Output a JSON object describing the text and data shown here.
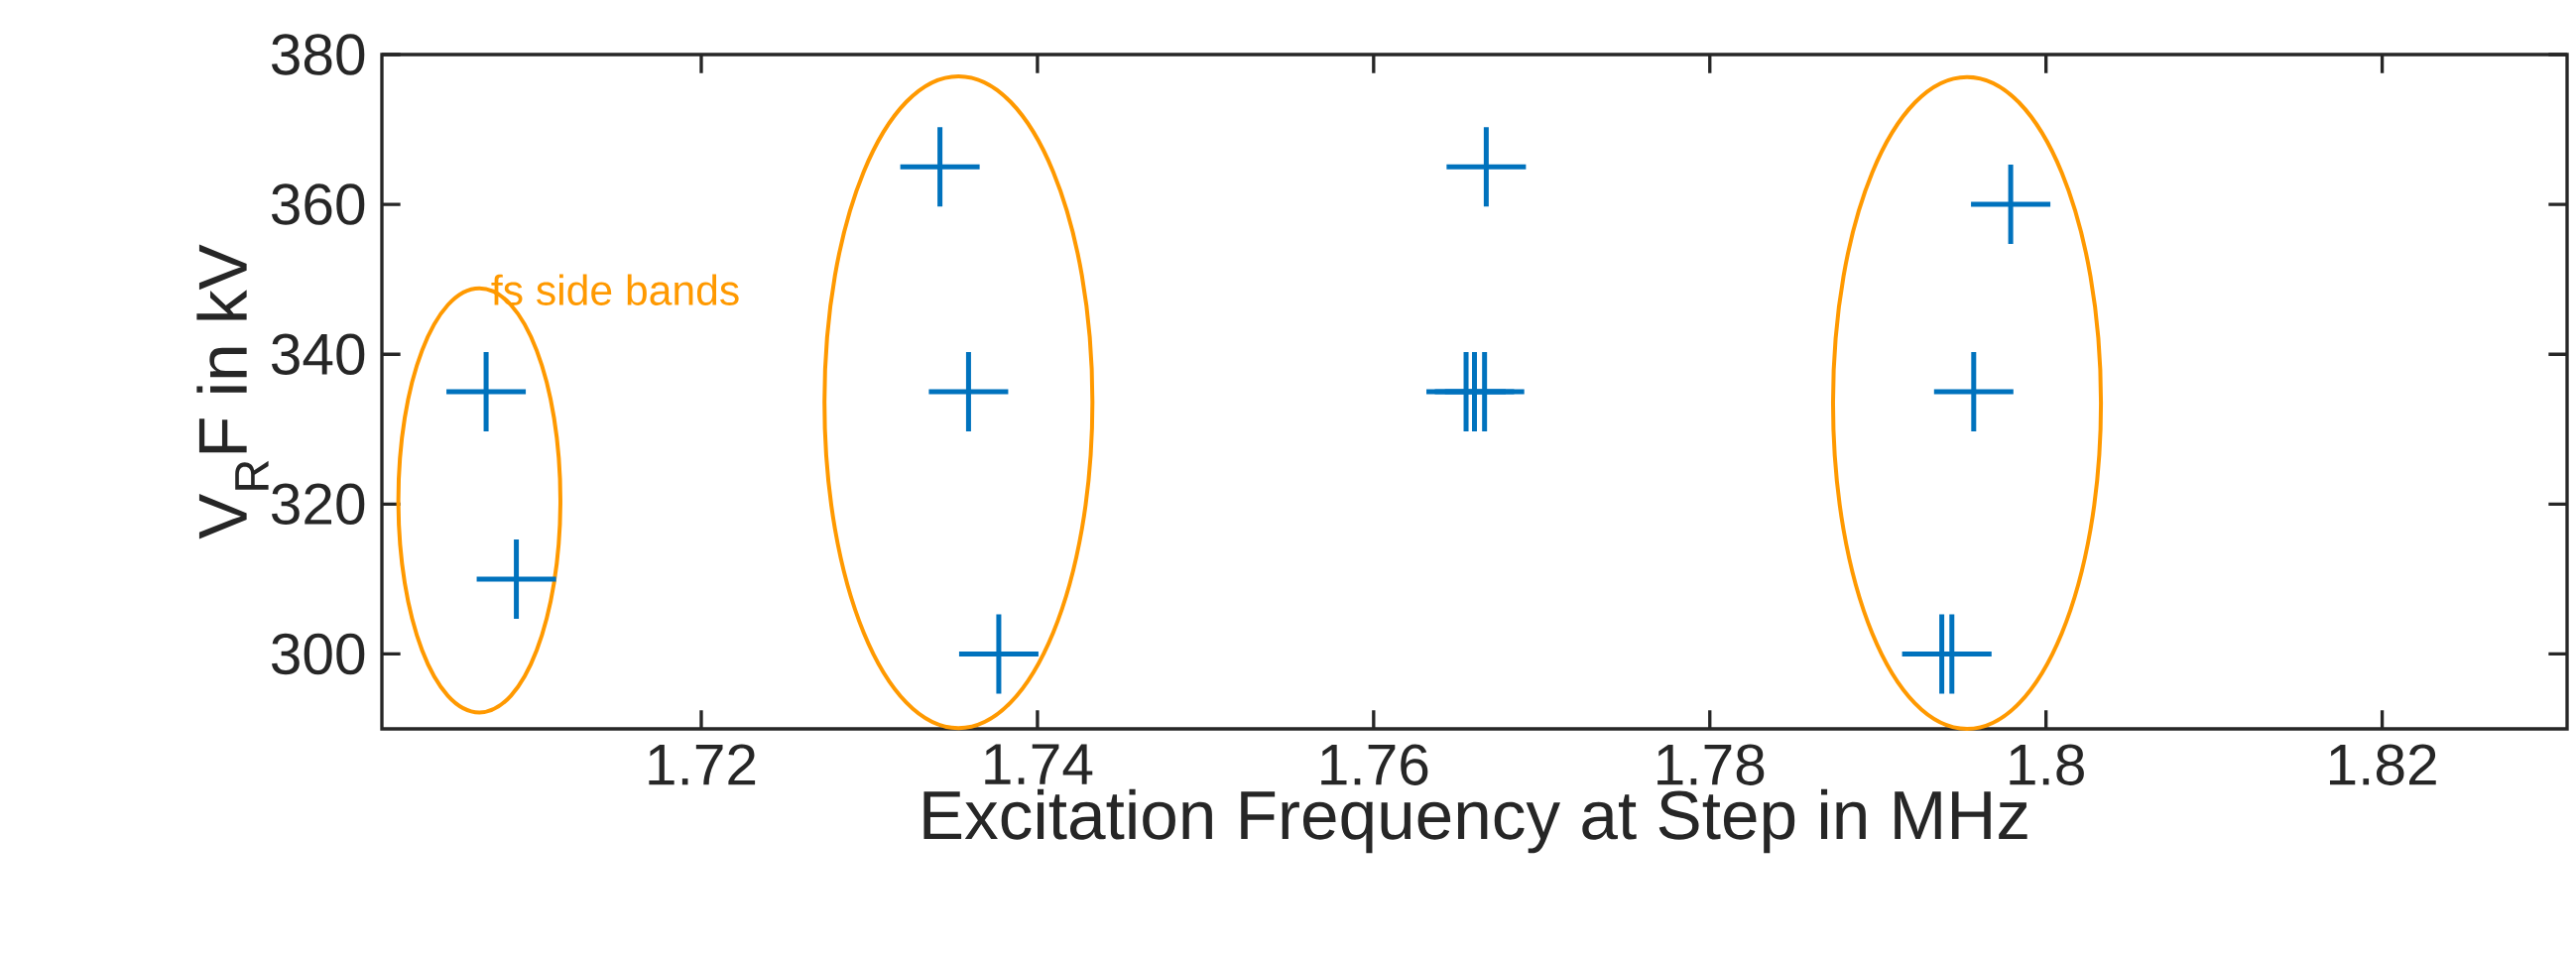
{
  "chart_data": {
    "type": "scatter",
    "xlabel": "Excitation Frequency at Step in MHz",
    "ylabel": "V$_{R}$F in kV",
    "annotations": [
      "fs side bands"
    ],
    "x": [
      1.7072,
      1.709,
      1.7342,
      1.7359,
      1.7377,
      1.7667,
      1.7655,
      1.766,
      1.7666,
      1.7979,
      1.7957,
      1.7938,
      1.7944
    ],
    "values": [
      335,
      310,
      365,
      335,
      300,
      365,
      335,
      335,
      335,
      360,
      335,
      300,
      300
    ],
    "color": "#0072bd",
    "marker": "cross",
    "xlim": [
      1.701,
      1.831
    ],
    "ylim": [
      290,
      380
    ],
    "xticks": [
      1.72,
      1.74,
      1.76,
      1.78,
      1.8,
      1.82
    ],
    "yticks": [
      300,
      320,
      340,
      360,
      380
    ],
    "grid": false
  }
}
